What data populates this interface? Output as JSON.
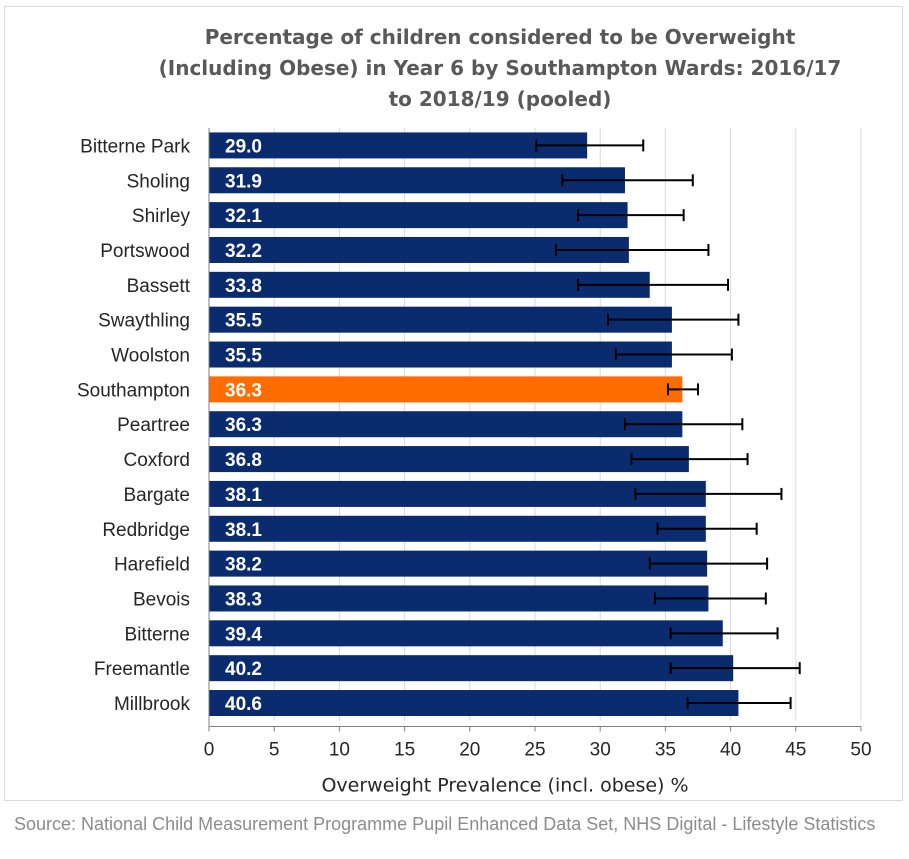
{
  "chart_data": {
    "type": "bar",
    "orientation": "horizontal",
    "title": "Percentage of children considered to be Overweight (Including Obese) in Year 6 by Southampton Wards: 2016/17 to 2018/19 (pooled)",
    "xlabel": "Overweight Prevalence (incl. obese) %",
    "ylabel": "",
    "xlim": [
      0,
      50
    ],
    "x_ticks": [
      0,
      5,
      10,
      15,
      20,
      25,
      30,
      35,
      40,
      45,
      50
    ],
    "grid": true,
    "categories": [
      "Bitterne Park",
      "Sholing",
      "Shirley",
      "Portswood",
      "Bassett",
      "Swaythling",
      "Woolston",
      "Southampton",
      "Peartree",
      "Coxford",
      "Bargate",
      "Redbridge",
      "Harefield",
      "Bevois",
      "Bitterne",
      "Freemantle",
      "Millbrook"
    ],
    "values": [
      29.0,
      31.9,
      32.1,
      32.2,
      33.8,
      35.5,
      35.5,
      36.3,
      36.3,
      36.8,
      38.1,
      38.1,
      38.2,
      38.3,
      39.4,
      40.2,
      40.6
    ],
    "value_labels": [
      "29.0",
      "31.9",
      "32.1",
      "32.2",
      "33.8",
      "35.5",
      "35.5",
      "36.3",
      "36.3",
      "36.8",
      "38.1",
      "38.1",
      "38.2",
      "38.3",
      "39.4",
      "40.2",
      "40.6"
    ],
    "ci_lower": [
      25.1,
      27.1,
      28.3,
      26.6,
      28.3,
      30.6,
      31.2,
      35.2,
      31.9,
      32.4,
      32.7,
      34.4,
      33.8,
      34.2,
      35.4,
      35.4,
      36.7
    ],
    "ci_upper": [
      33.3,
      37.1,
      36.4,
      38.3,
      39.8,
      40.6,
      40.1,
      37.5,
      40.9,
      41.3,
      43.9,
      42.0,
      42.8,
      42.7,
      43.6,
      45.3,
      44.6
    ],
    "highlight": "Southampton",
    "colors": {
      "bar": "#0a2b6e",
      "highlight": "#ff6d00",
      "errorbar": "#000000",
      "grid": "#d9d9d9",
      "axis": "#7f7f7f",
      "label": "#ffffff",
      "text": "#262626"
    }
  },
  "source": "Source: National Child Measurement Programme Pupil Enhanced Data Set, NHS Digital - Lifestyle Statistics"
}
